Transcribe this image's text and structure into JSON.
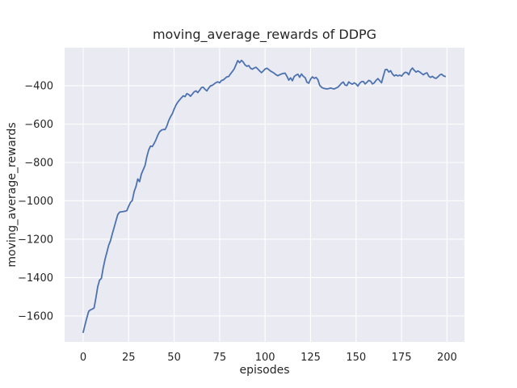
{
  "chart_data": {
    "type": "line",
    "title": "moving_average_rewards of DDPG",
    "xlabel": "episodes",
    "ylabel": "moving_average_rewards",
    "grid": true,
    "legend": null,
    "style": "seaborn-darkgrid",
    "xlim": [
      -10.2,
      209.6
    ],
    "ylim": [
      -1735,
      -202
    ],
    "xticks": [
      0,
      25,
      50,
      75,
      100,
      125,
      150,
      175,
      200
    ],
    "xtick_labels": [
      "0",
      "25",
      "50",
      "75",
      "100",
      "125",
      "150",
      "175",
      "200"
    ],
    "yticks": [
      -400,
      -600,
      -800,
      -1000,
      -1200,
      -1400,
      -1600
    ],
    "ytick_labels": [
      "−400",
      "−600",
      "−800",
      "−1000",
      "−1200",
      "−1400",
      "−1600"
    ],
    "colors": {
      "figure_background": "#ffffff",
      "axes_background": "#eaeaf2",
      "gridline": "#ffffff",
      "line": "#4c72b0",
      "text": "#262626"
    },
    "series": [
      {
        "name": "moving_average_rewards",
        "color": "#4c72b0",
        "x_start": 0,
        "x_step": 1,
        "values": [
          -1685,
          -1647,
          -1610,
          -1576,
          -1568,
          -1564,
          -1558,
          -1505,
          -1447,
          -1413,
          -1404,
          -1350,
          -1305,
          -1269,
          -1232,
          -1208,
          -1172,
          -1139,
          -1105,
          -1072,
          -1059,
          -1057,
          -1056,
          -1054,
          -1051,
          -1028,
          -1008,
          -998,
          -952,
          -926,
          -886,
          -900,
          -860,
          -838,
          -816,
          -770,
          -735,
          -715,
          -717,
          -701,
          -682,
          -658,
          -640,
          -632,
          -628,
          -629,
          -610,
          -582,
          -562,
          -546,
          -522,
          -501,
          -486,
          -474,
          -463,
          -453,
          -457,
          -441,
          -446,
          -455,
          -444,
          -432,
          -427,
          -436,
          -424,
          -410,
          -408,
          -419,
          -427,
          -412,
          -401,
          -398,
          -391,
          -384,
          -380,
          -385,
          -373,
          -370,
          -362,
          -354,
          -352,
          -338,
          -326,
          -313,
          -291,
          -269,
          -280,
          -268,
          -277,
          -292,
          -299,
          -295,
          -309,
          -314,
          -308,
          -304,
          -313,
          -323,
          -332,
          -323,
          -313,
          -309,
          -316,
          -324,
          -329,
          -335,
          -343,
          -348,
          -343,
          -339,
          -336,
          -335,
          -351,
          -371,
          -359,
          -374,
          -352,
          -345,
          -340,
          -356,
          -339,
          -351,
          -358,
          -382,
          -387,
          -366,
          -354,
          -362,
          -357,
          -368,
          -398,
          -408,
          -413,
          -415,
          -417,
          -415,
          -412,
          -415,
          -417,
          -412,
          -408,
          -398,
          -387,
          -381,
          -397,
          -399,
          -380,
          -388,
          -392,
          -385,
          -391,
          -402,
          -387,
          -379,
          -378,
          -391,
          -382,
          -372,
          -377,
          -391,
          -385,
          -372,
          -363,
          -374,
          -385,
          -350,
          -317,
          -315,
          -329,
          -322,
          -339,
          -349,
          -344,
          -349,
          -345,
          -350,
          -338,
          -330,
          -332,
          -343,
          -319,
          -308,
          -320,
          -329,
          -323,
          -329,
          -336,
          -343,
          -336,
          -333,
          -351,
          -357,
          -351,
          -359,
          -362,
          -354,
          -344,
          -340,
          -348,
          -352
        ]
      }
    ]
  }
}
